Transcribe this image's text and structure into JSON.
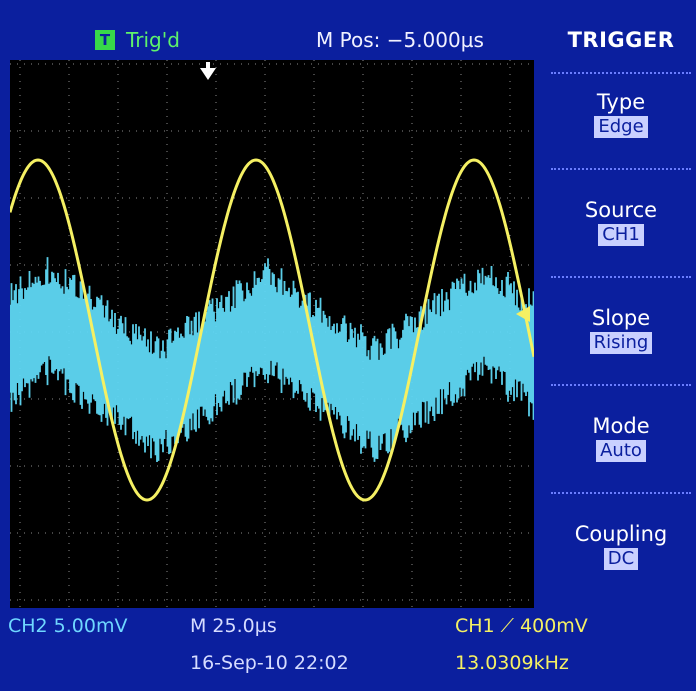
{
  "header": {
    "trig_icon": "T",
    "trig_status": "Trig'd",
    "m_pos": "M Pos: −5.000µs"
  },
  "menu": {
    "title": "TRIGGER",
    "items": [
      {
        "label": "Type",
        "value": "Edge"
      },
      {
        "label": "Source",
        "value": "CH1"
      },
      {
        "label": "Slope",
        "value": "Rising"
      },
      {
        "label": "Mode",
        "value": "Auto"
      },
      {
        "label": "Coupling",
        "value": "DC"
      }
    ]
  },
  "footer": {
    "ch2_scale": "CH2  5.00mV",
    "timebase": "M 25.0µs",
    "ch1_trigger": "CH1  ⟋  400mV",
    "datetime": "16-Sep-10 22:02",
    "frequency": "13.0309kHz"
  },
  "icons": {
    "trigger_position_marker": "down-arrow-icon",
    "trigger_level_marker": "left-arrow-icon"
  },
  "colors": {
    "ch1": "#f5f063",
    "ch2": "#5fd8f5",
    "background": "#0b1f9e",
    "plot": "#000000"
  }
}
